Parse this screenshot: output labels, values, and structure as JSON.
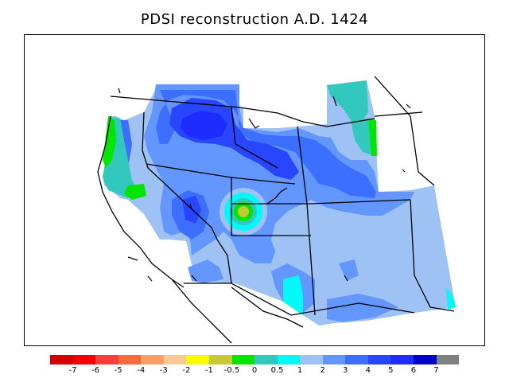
{
  "title": "PDSI reconstruction A.D. 1424",
  "colors": {
    "ocean": "#ffffff",
    "border": "#000000",
    "data_bg": "#9ec2f4"
  },
  "legend": {
    "colors": [
      "#d20000",
      "#f20000",
      "#fb3c3c",
      "#f8693c",
      "#faa064",
      "#fac896",
      "#fafa00",
      "#c8c832",
      "#00e600",
      "#32c8be",
      "#00fafa",
      "#9ec2f4",
      "#6496ff",
      "#3c6eff",
      "#2846ff",
      "#1e2cff",
      "#0000c8",
      "#808080"
    ],
    "ticks": [
      "-7",
      "-6",
      "-5",
      "-4",
      "-3",
      "-2",
      "-1",
      "-0.5",
      "0",
      "0.5",
      "1",
      "2",
      "3",
      "4",
      "5",
      "6",
      "7"
    ]
  }
}
